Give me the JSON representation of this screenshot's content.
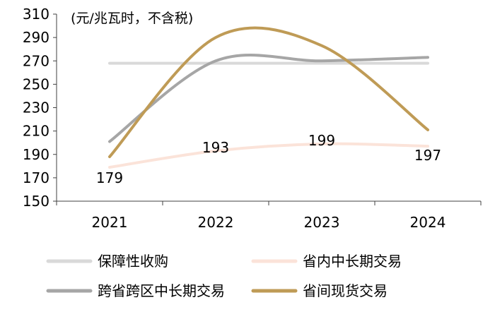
{
  "chart_data": {
    "type": "line",
    "unit_label": "(元/兆瓦时，不含税)",
    "categories": [
      "2021",
      "2022",
      "2023",
      "2024"
    ],
    "ylim": [
      150,
      310
    ],
    "yticks": [
      "310",
      "290",
      "270",
      "250",
      "230",
      "210",
      "190",
      "170",
      "150"
    ],
    "series": [
      {
        "name": "保障性收购",
        "values": [
          268,
          268,
          268,
          268
        ],
        "color": "#d9d9d9"
      },
      {
        "name": "省内中长期交易",
        "values": [
          179,
          193,
          199,
          197
        ],
        "color": "#fbe3d9",
        "data_labels": [
          "179",
          "193",
          "199",
          "197"
        ]
      },
      {
        "name": "跨省跨区中长期交易",
        "values": [
          201,
          270,
          270,
          273
        ],
        "color": "#a6a6a6"
      },
      {
        "name": "省间现货交易",
        "values": [
          188,
          290,
          283,
          211
        ],
        "color": "#bf9b56"
      }
    ]
  }
}
